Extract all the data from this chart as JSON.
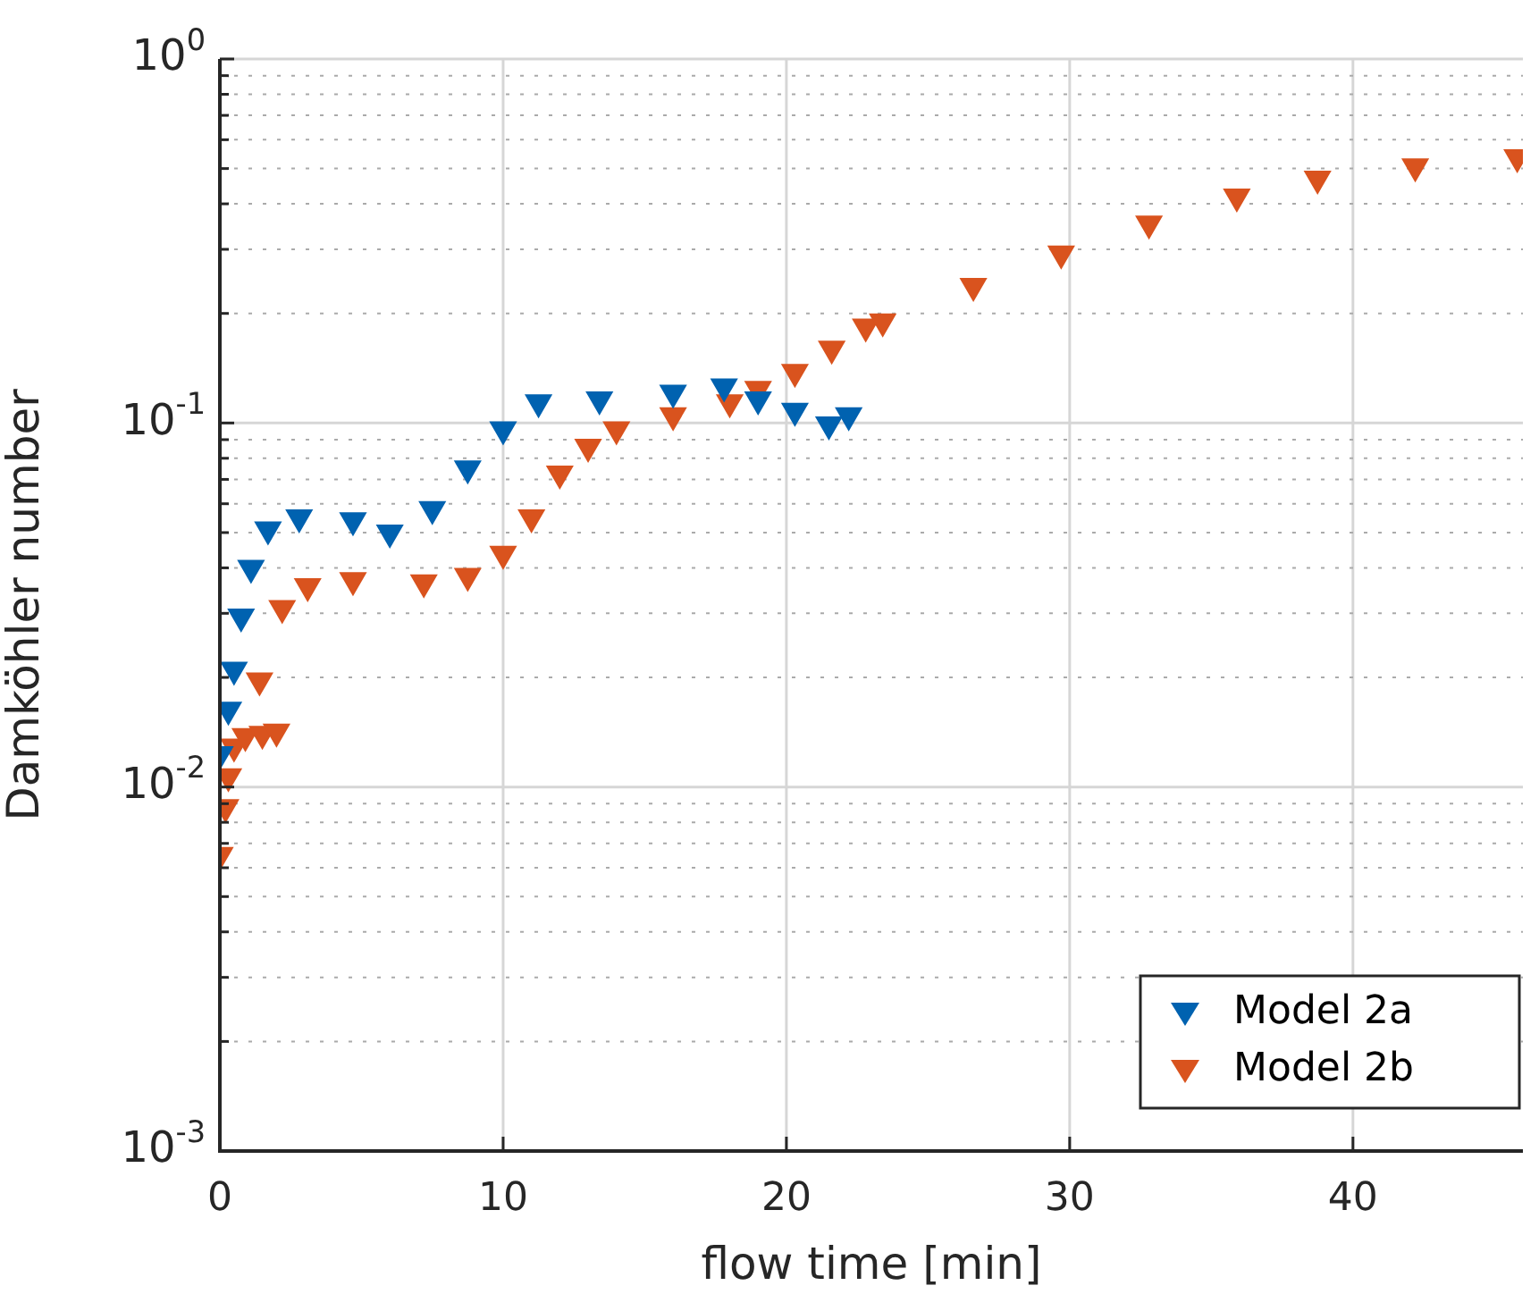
{
  "chart_data": {
    "type": "scatter",
    "xlabel": "flow time [min]",
    "ylabel": "Damköhler number",
    "log": "y",
    "grid": true,
    "legend": "bottom right",
    "marker": "triangle",
    "xlim": [
      0,
      46
    ],
    "xticks": [
      0,
      10,
      20,
      30,
      40
    ],
    "ylim": [
      0.001,
      1
    ],
    "yticks": [
      {
        "value": 0.001,
        "label": "10$^{-3}$"
      },
      {
        "value": 0.002,
        "label": null
      },
      {
        "value": 0.003,
        "label": null
      },
      {
        "value": 0.004,
        "label": null
      },
      {
        "value": 0.005,
        "label": null
      },
      {
        "value": 0.006,
        "label": null
      },
      {
        "value": 0.007,
        "label": null
      },
      {
        "value": 0.008,
        "label": null
      },
      {
        "value": 0.009,
        "label": null
      },
      {
        "value": 0.01,
        "label": "10$^{-2}$"
      },
      {
        "value": 0.02,
        "label": null
      },
      {
        "value": 0.03,
        "label": null
      },
      {
        "value": 0.04,
        "label": null
      },
      {
        "value": 0.05,
        "label": null
      },
      {
        "value": 0.06,
        "label": null
      },
      {
        "value": 0.07,
        "label": null
      },
      {
        "value": 0.08,
        "label": null
      },
      {
        "value": 0.09,
        "label": null
      },
      {
        "value": 0.1,
        "label": "10$^{-1}$"
      },
      {
        "value": 0.2,
        "label": null
      },
      {
        "value": 0.3,
        "label": null
      },
      {
        "value": 0.4,
        "label": null
      },
      {
        "value": 0.5,
        "label": null
      },
      {
        "value": 0.6,
        "label": null
      },
      {
        "value": 0.7,
        "label": null
      },
      {
        "value": 0.8,
        "label": null
      },
      {
        "value": 0.9,
        "label": null
      },
      {
        "value": 1,
        "label": "10$^{0}$"
      }
    ],
    "series": [
      {
        "name": "Model 2a",
        "color": "#0062b0",
        "x": [
          0,
          0.3,
          0.5,
          0.75,
          1.1,
          1.7,
          2.8,
          4.7,
          6,
          7.5,
          8.75,
          10,
          11.25,
          13.4,
          16,
          17.8,
          19,
          20.3,
          21.5,
          22.2
        ],
        "values": [
          0.0123,
          0.0163,
          0.021,
          0.0294,
          0.04,
          0.051,
          0.055,
          0.054,
          0.05,
          0.058,
          0.075,
          0.096,
          0.114,
          0.116,
          0.121,
          0.126,
          0.116,
          0.108,
          0.099,
          0.105
        ]
      },
      {
        "name": "Model 2b",
        "color": "#d9531e",
        "x": [
          0,
          0.2,
          0.3,
          0.5,
          0.9,
          1.4,
          1.5,
          2,
          2.2,
          3.1,
          4.7,
          7.2,
          8.75,
          10,
          11,
          12,
          13,
          14,
          16,
          18,
          19,
          20.3,
          21.6,
          22.8,
          23.4,
          26.6,
          29.7,
          32.8,
          35.9,
          38.75,
          42.2,
          45.8
        ],
        "values": [
          0.0065,
          0.0088,
          0.0107,
          0.0129,
          0.0138,
          0.0196,
          0.014,
          0.0142,
          0.031,
          0.0356,
          0.037,
          0.0365,
          0.038,
          0.0437,
          0.055,
          0.0726,
          0.086,
          0.096,
          0.105,
          0.114,
          0.124,
          0.138,
          0.16,
          0.184,
          0.19,
          0.238,
          0.292,
          0.353,
          0.419,
          0.469,
          0.507,
          0.537
        ]
      }
    ]
  }
}
